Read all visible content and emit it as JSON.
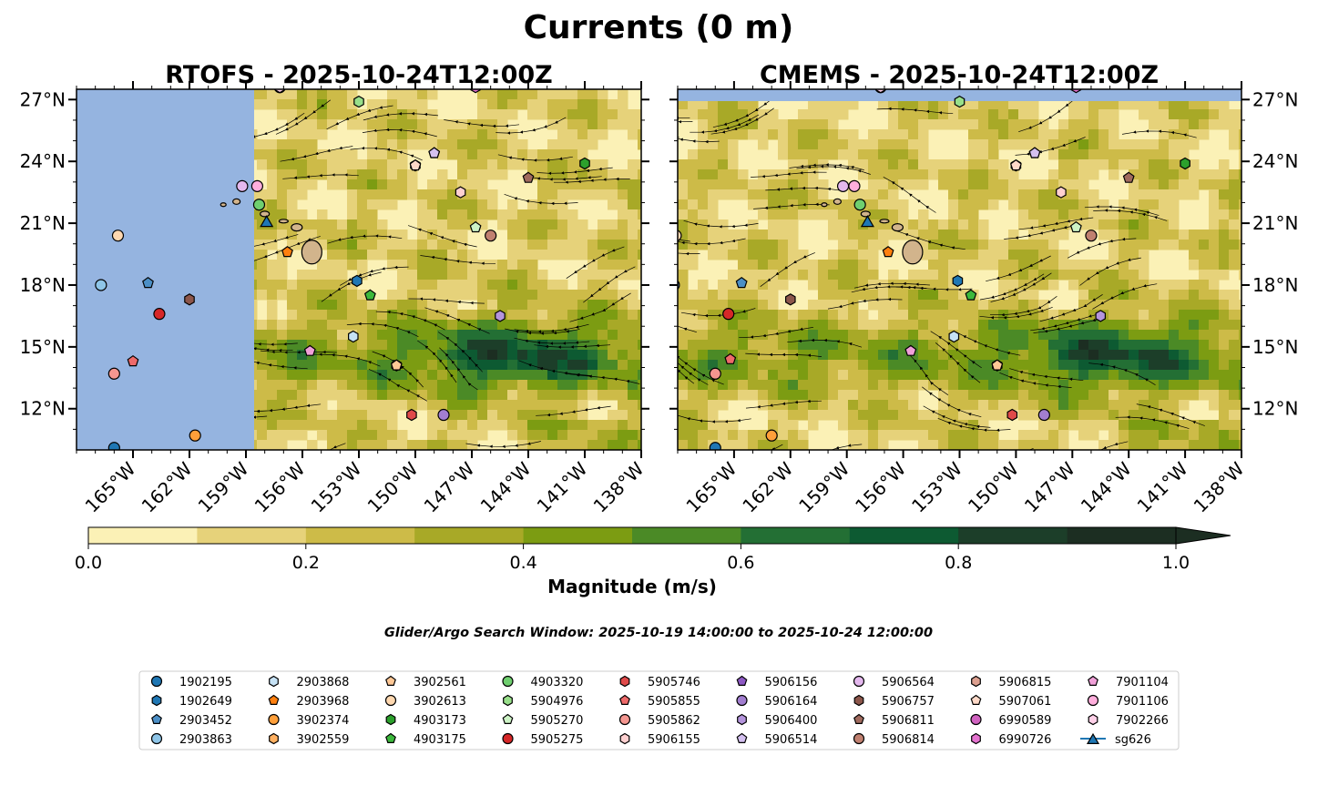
{
  "figure": {
    "suptitle": "Currents (0 m)",
    "search_window": "Glider/Argo Search Window: 2025-10-19 14:00:00 to 2025-10-24 12:00:00"
  },
  "colors": {
    "land": "#95b4e0",
    "island": "#d2b48c",
    "scale": [
      "#fbf1b6",
      "#e6d27a",
      "#cdbb48",
      "#a8a927",
      "#7c9c12",
      "#4b8a26",
      "#236f34",
      "#0d5a32",
      "#1c3e29",
      "#1c2e22"
    ]
  },
  "chart_data": [
    {
      "type": "contourf",
      "title": "RTOFS - 2025-10-24T12:00Z",
      "x_range": [
        -168,
        -138
      ],
      "y_range": [
        10,
        27.5
      ],
      "x_ticks": [
        -165,
        -162,
        -159,
        -156,
        -153,
        -150,
        -147,
        -144,
        -141,
        -138
      ],
      "x_tick_labels": [
        "165°W",
        "162°W",
        "159°W",
        "156°W",
        "153°W",
        "150°W",
        "147°W",
        "144°W",
        "141°W",
        "138°W"
      ],
      "y_ticks": [
        12,
        15,
        18,
        21,
        24,
        27
      ],
      "y_tick_labels": [
        "12°N",
        "15°N",
        "18°N",
        "21°N",
        "24°N",
        "27°N"
      ],
      "y_axis_side": "left",
      "masked_region_lon_max": -158
    },
    {
      "type": "contourf",
      "title": "CMEMS - 2025-10-24T12:00Z",
      "x_range": [
        -168,
        -138
      ],
      "y_range": [
        10,
        27.5
      ],
      "x_ticks": [
        -165,
        -162,
        -159,
        -156,
        -153,
        -150,
        -147,
        -144,
        -141,
        -138
      ],
      "x_tick_labels": [
        "165°W",
        "162°W",
        "159°W",
        "156°W",
        "153°W",
        "150°W",
        "147°W",
        "144°W",
        "141°W",
        "138°W"
      ],
      "y_ticks": [
        12,
        15,
        18,
        21,
        24,
        27
      ],
      "y_tick_labels": [
        "12°N",
        "15°N",
        "18°N",
        "21°N",
        "24°N",
        "27°N"
      ],
      "y_axis_side": "right",
      "masked_region_lat_min": 27
    }
  ],
  "colorbar": {
    "label": "Magnitude (m/s)",
    "boundaries": [
      0,
      0.1,
      0.2,
      0.3,
      0.4,
      0.5,
      0.6,
      0.7,
      0.8,
      0.9,
      1.0
    ],
    "ticks": [
      0.0,
      0.2,
      0.4,
      0.6,
      0.8,
      1.0
    ],
    "tick_labels": [
      "0.0",
      "0.2",
      "0.4",
      "0.6",
      "0.8",
      "1.0"
    ],
    "extend": "max"
  },
  "floats": [
    {
      "id": "1902195",
      "marker": "circle",
      "color": "#1f77b4",
      "lon": -166.0,
      "lat": 10.1,
      "lon2": -166.0,
      "lat2": 10.1
    },
    {
      "id": "1902649",
      "marker": "hexagon",
      "color": "#1f77b4",
      "lon": -153.1,
      "lat": 18.2,
      "lon2": -153.1,
      "lat2": 18.2
    },
    {
      "id": "2903452",
      "marker": "pentagon",
      "color": "#4c8fc6",
      "lon": -164.2,
      "lat": 18.1,
      "lon2": -164.6,
      "lat2": 18.1
    },
    {
      "id": "2903863",
      "marker": "circle",
      "color": "#8ec5e8",
      "lon": -166.7,
      "lat": 18.0,
      "lon2": -168.2,
      "lat2": 18.0
    },
    {
      "id": "2903868",
      "marker": "hexagon",
      "color": "#c6e2f5",
      "lon": -153.3,
      "lat": 15.5,
      "lon2": -153.3,
      "lat2": 15.5
    },
    {
      "id": "2903968",
      "marker": "pentagon",
      "color": "#ff7f0e",
      "lon": -156.8,
      "lat": 19.6,
      "lon2": -156.8,
      "lat2": 19.6
    },
    {
      "id": "3902374",
      "marker": "circle",
      "color": "#ff9f3a",
      "lon": -161.7,
      "lat": 10.7,
      "lon2": -163.0,
      "lat2": 10.7
    },
    {
      "id": "3902559",
      "marker": "hexagon",
      "color": "#ffb061",
      "lon": -151.0,
      "lat": 14.1,
      "lon2": -151.0,
      "lat2": 14.1
    },
    {
      "id": "3902561",
      "marker": "pentagon",
      "color": "#ffc896",
      "lon": -151.0,
      "lat": 14.1,
      "lon2": -151.0,
      "lat2": 14.1
    },
    {
      "id": "3902613",
      "marker": "circle",
      "color": "#ffd8b0",
      "lon": -165.8,
      "lat": 20.4,
      "lon2": -168.1,
      "lat2": 20.4
    },
    {
      "id": "4903173",
      "marker": "hexagon",
      "color": "#2ca02c",
      "lon": -141.0,
      "lat": 23.9,
      "lon2": -141.0,
      "lat2": 23.9
    },
    {
      "id": "4903175",
      "marker": "pentagon",
      "color": "#3cb83c",
      "lon": -152.4,
      "lat": 17.5,
      "lon2": -152.4,
      "lat2": 17.5
    },
    {
      "id": "4903320",
      "marker": "circle",
      "color": "#6fcf6f",
      "lon": -158.3,
      "lat": 21.9,
      "lon2": -158.3,
      "lat2": 21.9
    },
    {
      "id": "5904976",
      "marker": "hexagon",
      "color": "#98df8a",
      "lon": -153.0,
      "lat": 26.9,
      "lon2": -153.0,
      "lat2": 26.9
    },
    {
      "id": "5905270",
      "marker": "pentagon",
      "color": "#cdf3c6",
      "lon": -146.8,
      "lat": 20.8,
      "lon2": -146.8,
      "lat2": 20.8
    },
    {
      "id": "5905275",
      "marker": "circle",
      "color": "#d62728",
      "lon": -163.6,
      "lat": 16.6,
      "lon2": -165.3,
      "lat2": 16.6
    },
    {
      "id": "5905746",
      "marker": "hexagon",
      "color": "#e04a4a",
      "lon": -150.2,
      "lat": 11.7,
      "lon2": -150.2,
      "lat2": 11.7
    },
    {
      "id": "5905855",
      "marker": "pentagon",
      "color": "#ee6a6a",
      "lon": -165.0,
      "lat": 14.3,
      "lon2": -165.2,
      "lat2": 14.4
    },
    {
      "id": "5905862",
      "marker": "circle",
      "color": "#f49690",
      "lon": -166.0,
      "lat": 13.7,
      "lon2": -166.0,
      "lat2": 13.7
    },
    {
      "id": "5906155",
      "marker": "hexagon",
      "color": "#ffd0d0",
      "lon": -147.6,
      "lat": 22.5,
      "lon2": -147.6,
      "lat2": 22.5
    },
    {
      "id": "5906156",
      "marker": "pentagon",
      "color": "#8e59c4",
      "lon": -149.0,
      "lat": 24.4,
      "lon2": -149.0,
      "lat2": 24.4
    },
    {
      "id": "5906164",
      "marker": "circle",
      "color": "#a27ed0",
      "lon": -148.5,
      "lat": 11.7,
      "lon2": -148.5,
      "lat2": 11.7
    },
    {
      "id": "5906400",
      "marker": "hexagon",
      "color": "#b494dc",
      "lon": -145.5,
      "lat": 16.5,
      "lon2": -145.5,
      "lat2": 16.5
    },
    {
      "id": "5906514",
      "marker": "pentagon",
      "color": "#d4c0f0",
      "lon": -149.0,
      "lat": 24.4,
      "lon2": -149.0,
      "lat2": 24.4
    },
    {
      "id": "5906564",
      "marker": "circle",
      "color": "#e4b8ee",
      "lon": -159.2,
      "lat": 22.8,
      "lon2": -159.2,
      "lat2": 22.8
    },
    {
      "id": "5906757",
      "marker": "hexagon",
      "color": "#8c564b",
      "lon": -162.0,
      "lat": 17.3,
      "lon2": -162.0,
      "lat2": 17.3
    },
    {
      "id": "5906811",
      "marker": "pentagon",
      "color": "#a06a5e",
      "lon": -144.0,
      "lat": 23.2,
      "lon2": -144.0,
      "lat2": 23.2
    },
    {
      "id": "5906814",
      "marker": "circle",
      "color": "#c08070",
      "lon": -146.0,
      "lat": 20.4,
      "lon2": -146.0,
      "lat2": 20.4
    },
    {
      "id": "5906815",
      "marker": "hexagon",
      "color": "#dda090",
      "lon": -150.0,
      "lat": 23.8,
      "lon2": -150.0,
      "lat2": 23.8
    },
    {
      "id": "5907061",
      "marker": "pentagon",
      "color": "#ffd9c8",
      "lon": -150.0,
      "lat": 23.8,
      "lon2": -150.0,
      "lat2": 23.8
    },
    {
      "id": "6990589",
      "marker": "circle",
      "color": "#d062c0",
      "lon": -157.2,
      "lat": 27.6,
      "lon2": -157.2,
      "lat2": 27.6
    },
    {
      "id": "6990726",
      "marker": "hexagon",
      "color": "#e472cf",
      "lon": -146.8,
      "lat": 27.6,
      "lon2": -146.8,
      "lat2": 27.6
    },
    {
      "id": "7901104",
      "marker": "pentagon",
      "color": "#f0a0d8",
      "lon": -155.6,
      "lat": 14.8,
      "lon2": -155.6,
      "lat2": 14.8
    },
    {
      "id": "7901106",
      "marker": "circle",
      "color": "#ffaedc",
      "lon": -158.4,
      "lat": 22.8,
      "lon2": -158.6,
      "lat2": 22.8
    },
    {
      "id": "7902266",
      "marker": "hexagon",
      "color": "#ffd0e8",
      "lon": -157.2,
      "lat": 27.6,
      "lon2": -157.2,
      "lat2": 27.6
    },
    {
      "id": "sg626",
      "marker": "triangle",
      "color": "#1f77b4",
      "lon": -157.9,
      "lat": 21.1,
      "lon2": -157.9,
      "lat2": 21.1
    }
  ]
}
